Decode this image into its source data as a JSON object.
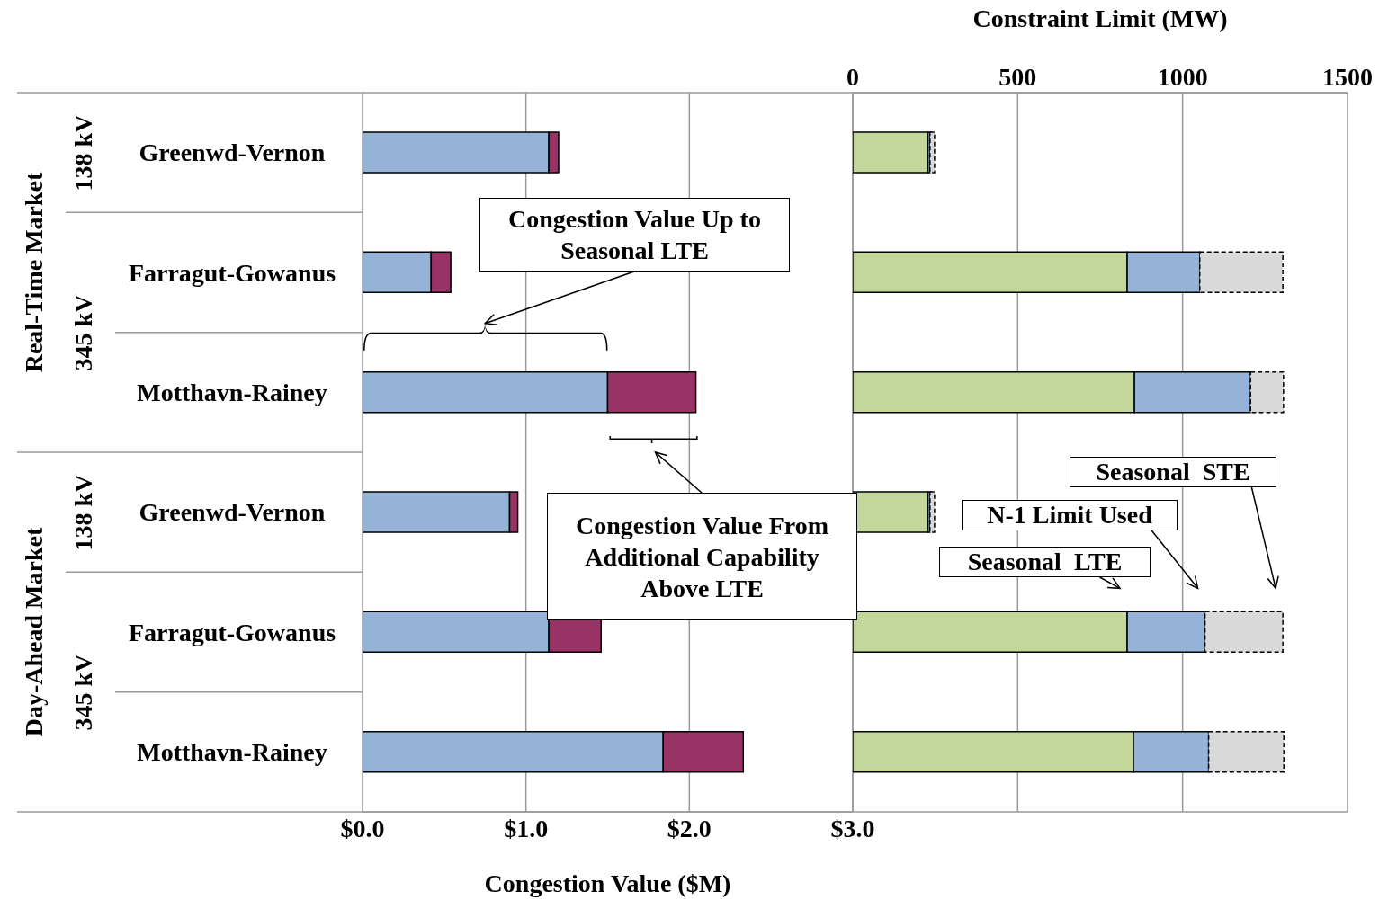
{
  "chart_data": [
    {
      "type": "bar",
      "orientation": "horizontal",
      "stacked": true,
      "grid": "x",
      "categories": [
        "Greenwd-Vernon",
        "Farragut-Gowanus",
        "Motthavn-Rainey",
        "Greenwd-Vernon",
        "Farragut-Gowanus",
        "Motthavn-Rainey"
      ],
      "series": [
        {
          "name": "Congestion Value Up to Seasonal LTE",
          "color": "#95b3d7",
          "values": [
            1.14,
            0.42,
            1.5,
            0.9,
            1.14,
            1.84
          ]
        },
        {
          "name": "Congestion Value From Additional Capability Above LTE",
          "color": "#993366",
          "values": [
            0.06,
            0.12,
            0.54,
            0.05,
            0.32,
            0.49
          ]
        }
      ],
      "xlabel": "Congestion Value ($M)",
      "xlim": [
        0,
        3
      ],
      "xticks": [
        {
          "value": 0,
          "label": "$0.0"
        },
        {
          "value": 1,
          "label": "$1.0"
        },
        {
          "value": 2,
          "label": "$2.0"
        },
        {
          "value": 3,
          "label": "$3.0"
        }
      ],
      "annotations": [
        "138 kV",
        "345 kV",
        "Real-Time Market",
        "138 kV",
        "345 kV",
        "Day-Ahead Market"
      ]
    },
    {
      "type": "bar",
      "orientation": "horizontal",
      "stacked": true,
      "grid": "x",
      "categories": [
        null,
        null,
        null,
        null,
        null,
        null
      ],
      "series": [
        {
          "name": "Seasonal  LTE",
          "color": "#c4d79b",
          "axis": "x2",
          "values": [
            228,
            832,
            854,
            228,
            832,
            851
          ]
        },
        {
          "name": "N-1 Limit Used",
          "color": "#95b3d7",
          "axis": "x2",
          "values": [
            6,
            220,
            352,
            6,
            236,
            228
          ]
        },
        {
          "name": "Seasonal  STE",
          "color": "#d9d9d9",
          "axis": "x2",
          "line_style": "dashed",
          "values": [
            14,
            252,
            100,
            14,
            236,
            228
          ]
        }
      ],
      "x2label": "Constraint Limit (MW)",
      "x2lim": [
        0,
        1500
      ],
      "x2ticks": [
        0,
        500,
        1000,
        1500
      ]
    }
  ]
}
